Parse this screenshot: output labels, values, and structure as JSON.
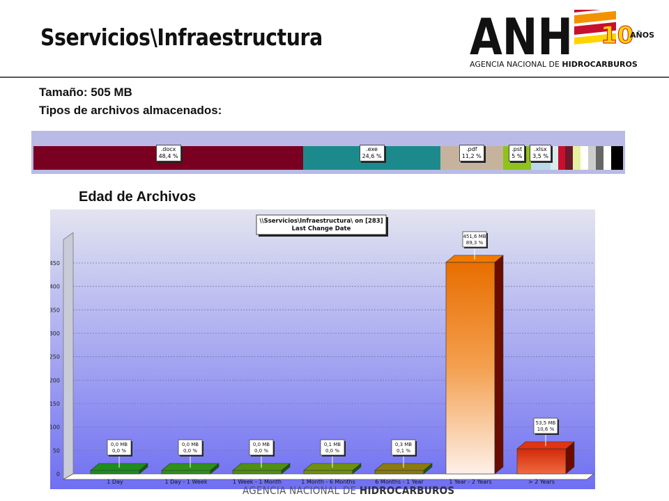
{
  "header": {
    "title": "Sservicios\\Infraestructura",
    "logo_text": "ANH",
    "logo_badge": "10",
    "logo_years": "AÑOS",
    "logo_subtitle_prefix": "AGENCIA NACIONAL DE ",
    "logo_subtitle_bold": "HIDROCARBUROS"
  },
  "info": {
    "size_line": "Tamaño: 505 MB",
    "types_line": "Tipos de archivos almacenados:"
  },
  "section_title": "Edad de Archivos",
  "footer": {
    "prefix": "AGENCIA NACIONAL DE ",
    "bold": "HIDROCARBUROS"
  },
  "colors": {
    "brand_red": "#c8102e",
    "brand_orange": "#f39200",
    "brand_yellow": "#ffd400",
    "chart_bg_top": "#e2e4f0",
    "chart_bg_bottom": "#6f6ff2"
  },
  "chart_data": [
    {
      "type": "bar",
      "orientation": "stacked-horizontal",
      "categories": [
        ".docx",
        ".exe",
        ".pdf",
        ".pst",
        ".xlsx"
      ],
      "values": [
        48.4,
        24.6,
        11.2,
        5,
        3.5
      ],
      "labels": [
        "48,4 %",
        "24,6 %",
        "11,2 %",
        "5 %",
        "3,5 %"
      ],
      "colors": [
        "#7a0022",
        "#1c8a8c",
        "#c6b39d",
        "#8fc21a",
        "#b9d9e8"
      ],
      "other_colors": [
        "#d7ecec",
        "#c8102e",
        "#6a1a2a",
        "#e6f0a0",
        "#ffffff",
        "#cccccc",
        "#666666",
        "#ffffff",
        "#000000"
      ]
    },
    {
      "type": "bar",
      "legend_title": "\\\\Sservicios\\Infraestructura\\  on  [283]",
      "legend_subtitle": "Last Change Date",
      "categories": [
        "1 Day",
        "1 Day - 1 Week",
        "1 Week - 1 Month",
        "1 Month - 6 Months",
        "6 Months - 1 Year",
        "1 Year - 2 Years",
        "> 2 Years"
      ],
      "values": [
        0.0,
        0.0,
        0.0,
        0.1,
        0.3,
        451.6,
        53.5
      ],
      "mb_labels": [
        "0,0 MB",
        "0,0 MB",
        "0,0 MB",
        "0,1 MB",
        "0,3 MB",
        "451,6 MB",
        "53,5 MB"
      ],
      "pct_labels": [
        "0,0 %",
        "0,0 %",
        "0,0 %",
        "0,0 %",
        "0,1 %",
        "89,3 %",
        "10,6 %"
      ],
      "colors": [
        "#1e8c1e",
        "#2f8f1a",
        "#4f8f14",
        "#6f9010",
        "#8a7a10",
        "#f07a00",
        "#e23410"
      ],
      "yticks": [
        0,
        50,
        100,
        150,
        200,
        250,
        300,
        350,
        400,
        450
      ],
      "ylim": [
        0,
        500
      ],
      "grid": true
    }
  ]
}
